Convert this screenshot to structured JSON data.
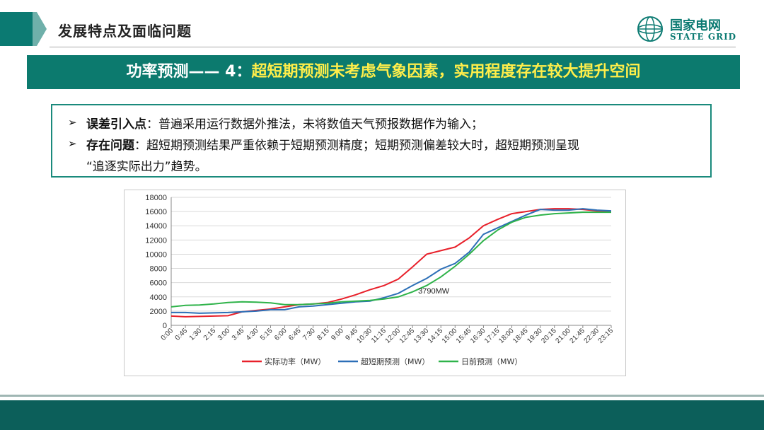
{
  "header": {
    "title": "发展特点及面临问题",
    "logo_cn": "国家电网",
    "logo_en": "STATE GRID"
  },
  "banner": {
    "prefix": "功率预测—— 4：",
    "highlight": "超短期预测未考虑气象因素，实用程度存在较大提升空间"
  },
  "bullets": [
    {
      "label": "误差引入点",
      "text": "：普遍采用运行数据外推法，未将数值天气预报数据作为输入；"
    },
    {
      "label": "存在问题",
      "text": "：超短期预测结果严重依赖于短期预测精度；短期预测偏差较大时，超短期预测呈现"
    },
    {
      "label": "",
      "text": "“追逐实际出力”趋势。"
    }
  ],
  "colors": {
    "primary": "#0c7a6e",
    "highlight": "#ffee4a",
    "actual": "#e8202a",
    "ultra": "#2c6fb7",
    "dayahead": "#2fb34a"
  },
  "chart_data": {
    "type": "line",
    "y_ticks": [
      "0",
      "2000",
      "4000",
      "6000",
      "8000",
      "10000",
      "12000",
      "14000",
      "16000",
      "18000"
    ],
    "ylim": [
      0,
      18000
    ],
    "x_tick_labels": [
      "0:00",
      "0:45",
      "1:30",
      "2:15",
      "3:00",
      "3:45",
      "4:30",
      "5:15",
      "6:00",
      "6:45",
      "7:30",
      "8:15",
      "9:00",
      "9:45",
      "10:30",
      "11:15",
      "12:00",
      "12:45",
      "13:30",
      "14:15",
      "15:00",
      "15:45",
      "16:30",
      "17:15",
      "18:00",
      "18:45",
      "19:30",
      "20:15",
      "21:00",
      "21:45",
      "22:30",
      "23:15"
    ],
    "annotation": "3790MW",
    "legend_position": "bottom",
    "series": [
      {
        "name": "实际功率（MW）",
        "color": "#e8202a",
        "values": [
          1300,
          1200,
          1250,
          1300,
          1350,
          1900,
          2100,
          2300,
          2600,
          2900,
          3000,
          3200,
          3700,
          4300,
          5000,
          5600,
          6500,
          8200,
          10000,
          10500,
          11000,
          12300,
          14000,
          14900,
          15700,
          16000,
          16300,
          16400,
          16400,
          16300,
          16100,
          16000
        ]
      },
      {
        "name": "超短期预测（MW）",
        "color": "#2c6fb7",
        "values": [
          1800,
          1800,
          1700,
          1750,
          1800,
          1900,
          2000,
          2200,
          2200,
          2600,
          2700,
          2900,
          3100,
          3300,
          3400,
          3900,
          4500,
          5600,
          6600,
          7900,
          8700,
          10300,
          12800,
          13700,
          14600,
          15500,
          16300,
          16200,
          16200,
          16400,
          16200,
          16100
        ]
      },
      {
        "name": "日前预测（MW）",
        "color": "#2fb34a",
        "values": [
          2600,
          2800,
          2850,
          3000,
          3200,
          3300,
          3250,
          3150,
          2900,
          2900,
          3000,
          3100,
          3300,
          3400,
          3500,
          3700,
          4000,
          4700,
          5600,
          6800,
          8300,
          10000,
          11900,
          13400,
          14500,
          15200,
          15500,
          15700,
          15800,
          15900,
          15900,
          15900
        ]
      }
    ]
  }
}
